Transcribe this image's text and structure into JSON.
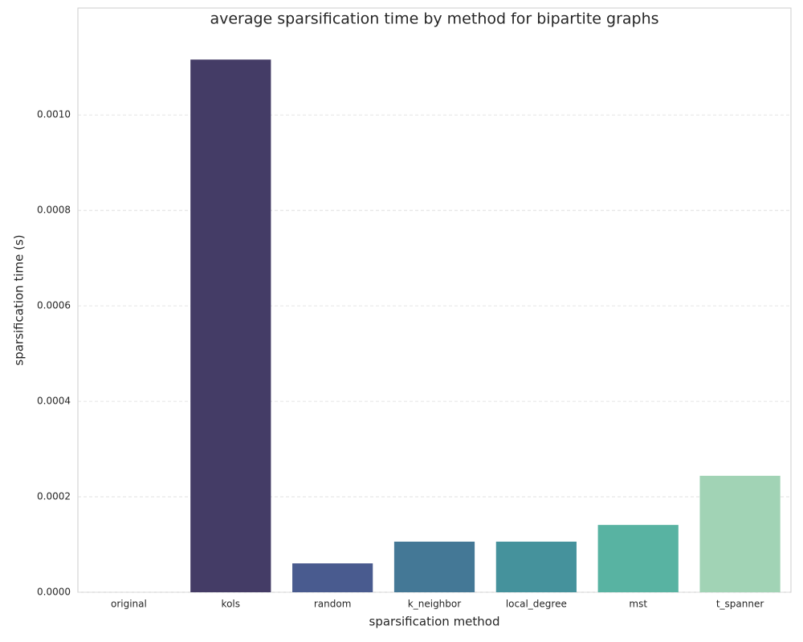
{
  "chart_data": {
    "type": "bar",
    "title": "average sparsification time by method for bipartite graphs",
    "x_label": "sparsification method",
    "y_label": "sparsification time (s)",
    "categories": [
      "original",
      "kols",
      "random",
      "k_neighbor",
      "local_degree",
      "mst",
      "t_spanner"
    ],
    "values": [
      0,
      0.001116,
      6.05e-05,
      0.000106,
      0.000106,
      0.000141,
      0.000244
    ],
    "colors": [
      "#2e1e3b",
      "#443c66",
      "#495b8f",
      "#447896",
      "#45929c",
      "#58b3a2",
      "#a1d3b5"
    ],
    "ylim": [
      0,
      0.001224
    ],
    "yticks": [
      {
        "value": 0,
        "label": "0.0000"
      },
      {
        "value": 0.0002,
        "label": "0.0002"
      },
      {
        "value": 0.0004,
        "label": "0.0004"
      },
      {
        "value": 0.0006,
        "label": "0.0006"
      },
      {
        "value": 0.0008,
        "label": "0.0008"
      },
      {
        "value": 0.001,
        "label": "0.0010"
      }
    ],
    "grid": true
  }
}
